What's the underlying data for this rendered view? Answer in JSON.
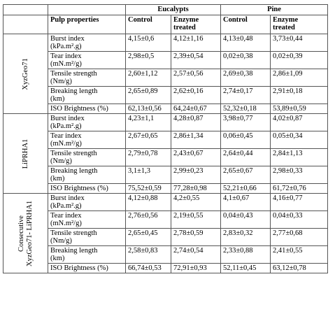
{
  "header": {
    "pulp_properties": "Pulp properties",
    "eucalypts": "Eucalypts",
    "pine": "Pine",
    "control": "Control",
    "enzyme_treated_l1": "Enzyme",
    "enzyme_treated_l2": "treated"
  },
  "groups": [
    {
      "label_l1": "XyzGeo71",
      "label_l2": "",
      "rows": [
        {
          "p1": "Burst index",
          "p2": "(kPa.m².g)",
          "ec": "4,15±0,6",
          "et": "4,12±1,16",
          "pc": "4,13±0,48",
          "pt": "3,73±0,44"
        },
        {
          "p1": "Tear index",
          "p2": "(mN.m²/g)",
          "ec": "2,98±0,5",
          "et": "2,39±0,54",
          "pc": "0,02±0,38",
          "pt": "0,02±0,39"
        },
        {
          "p1": "Tensile strength",
          "p2": "(Nm/g)",
          "ec": "2,60±1,12",
          "et": "2,57±0,56",
          "pc": "2,69±0,38",
          "pt": "2,86±1,09"
        },
        {
          "p1": "Breaking length",
          "p2": "(km)",
          "ec": "2,65±0,89",
          "et": "2,62±0,16",
          "pc": "2,74±0,17",
          "pt": "2,91±0,18"
        },
        {
          "p1": "ISO Brightness  (%)",
          "p2": "",
          "ec": "62,13±0,56",
          "et": "64,24±0,67",
          "pc": "52,32±0,18",
          "pt": "53,89±0,59"
        }
      ]
    },
    {
      "label_l1": "LiPRHA1",
      "label_l2": "",
      "rows": [
        {
          "p1": "Burst index",
          "p2": "(kPa.m².g)",
          "ec": "4,23±1,1",
          "et": "4,28±0,87",
          "pc": "3,98±0,77",
          "pt": "4,02±0,87"
        },
        {
          "p1": "Tear index",
          "p2": "(mN.m²/g)",
          "ec": "2,67±0,65",
          "et": "2,86±1,34",
          "pc": "0,06±0,45",
          "pt": "0,05±0,34"
        },
        {
          "p1": "Tensile strength",
          "p2": "(Nm/g)",
          "ec": "2,79±0,78",
          "et": "2,43±0,67",
          "pc": "2,64±0,44",
          "pt": "2,84±1,13"
        },
        {
          "p1": "Breaking length",
          "p2": "(km)",
          "ec": "3,1±1,3",
          "et": "2,99±0,23",
          "pc": "2,65±0,67",
          "pt": "2,98±0,33"
        },
        {
          "p1": "ISO Brightness  (%)",
          "p2": "",
          "ec": "75,52±0,59",
          "et": "77,28±0,98",
          "pc": "52,21±0,66",
          "pt": "61,72±0,76"
        }
      ]
    },
    {
      "label_l1": "Consecutive",
      "label_l2": "XyzGeo71- LiPRHA1",
      "rows": [
        {
          "p1": "Burst index",
          "p2": "(kPa.m².g)",
          "ec": "4,12±0,88",
          "et": "4,2±0,55",
          "pc": "4,1±0,67",
          "pt": "4,16±0,77"
        },
        {
          "p1": "Tear index",
          "p2": "(mN.m²/g)",
          "ec": "2,76±0,56",
          "et": "2,19±0,55",
          "pc": "0,04±0,43",
          "pt": "0,04±0,33"
        },
        {
          "p1": "Tensile strength",
          "p2": "(Nm/g)",
          "ec": "2,65±0,45",
          "et": "2,78±0,59",
          "pc": "2,83±0,32",
          "pt": "2,77±0,68"
        },
        {
          "p1": "Breaking length",
          "p2": "(km)",
          "ec": "2,58±0,83",
          "et": "2,74±0,54",
          "pc": "2,33±0,88",
          "pt": "2,41±0,55"
        },
        {
          "p1": "ISO Brightness  (%)",
          "p2": "",
          "ec": "66,74±0,53",
          "et": "72,91±0,93",
          "pc": "52,11±0,45",
          "pt": "63,12±0,78"
        }
      ]
    }
  ]
}
